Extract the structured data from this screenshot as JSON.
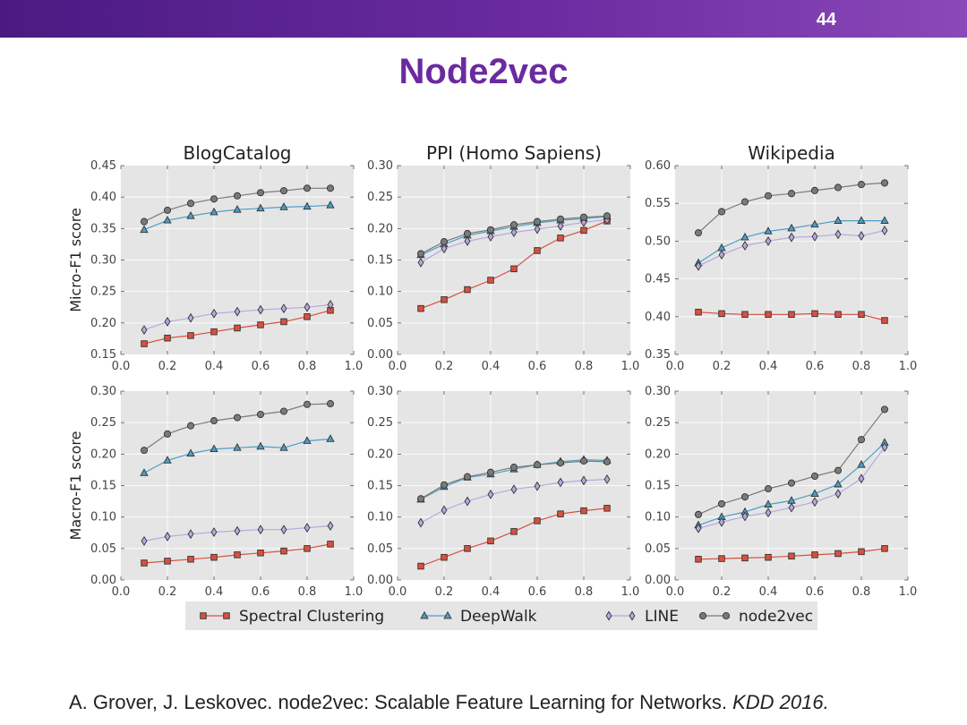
{
  "slide": {
    "number": "44",
    "title": "Node2vec",
    "citation": "A. Grover, J. Leskovec. node2vec: Scalable Feature Learning for Networks.",
    "citation_venue": "KDD 2016."
  },
  "colors": {
    "topbar": "#5a2290",
    "title": "#6b2aa0",
    "plot_bg": "#e5e5e5",
    "grid": "#ffffff",
    "spectral": "#d9503f",
    "deepwalk": "#4d9ec4",
    "line": "#b8a8e0",
    "node2vec": "#7a7a7a"
  },
  "legend": [
    {
      "name": "Spectral Clustering",
      "marker": "square",
      "key": "spectral"
    },
    {
      "name": "DeepWalk",
      "marker": "triangle",
      "key": "deepwalk"
    },
    {
      "name": "LINE",
      "marker": "diamond",
      "key": "line"
    },
    {
      "name": "node2vec",
      "marker": "circle",
      "key": "node2vec"
    }
  ],
  "chart_data": [
    {
      "type": "line",
      "title": "BlogCatalog",
      "ylabel": "Micro-F1 score",
      "xlabel": "",
      "x": [
        0.1,
        0.2,
        0.3,
        0.4,
        0.5,
        0.6,
        0.7,
        0.8,
        0.9
      ],
      "xlim": [
        0.0,
        1.0
      ],
      "ylim": [
        0.15,
        0.45
      ],
      "xticks": [
        "0.0",
        "0.2",
        "0.4",
        "0.6",
        "0.8",
        "1.0"
      ],
      "yticks": [
        "0.15",
        "0.20",
        "0.25",
        "0.30",
        "0.35",
        "0.40",
        "0.45"
      ],
      "series": [
        {
          "name": "Spectral Clustering",
          "key": "spectral",
          "values": [
            0.167,
            0.176,
            0.18,
            0.186,
            0.192,
            0.197,
            0.202,
            0.21,
            0.22
          ]
        },
        {
          "name": "DeepWalk",
          "key": "deepwalk",
          "values": [
            0.348,
            0.363,
            0.37,
            0.376,
            0.38,
            0.382,
            0.384,
            0.385,
            0.387
          ]
        },
        {
          "name": "LINE",
          "key": "line",
          "values": [
            0.189,
            0.202,
            0.208,
            0.215,
            0.218,
            0.221,
            0.223,
            0.225,
            0.229
          ]
        },
        {
          "name": "node2vec",
          "key": "node2vec",
          "values": [
            0.361,
            0.379,
            0.39,
            0.397,
            0.402,
            0.407,
            0.41,
            0.414,
            0.414
          ]
        }
      ]
    },
    {
      "type": "line",
      "title": "PPI (Homo Sapiens)",
      "ylabel": "",
      "xlabel": "",
      "x": [
        0.1,
        0.2,
        0.3,
        0.4,
        0.5,
        0.6,
        0.7,
        0.8,
        0.9
      ],
      "xlim": [
        0.0,
        1.0
      ],
      "ylim": [
        0.0,
        0.3
      ],
      "xticks": [
        "0.0",
        "0.2",
        "0.4",
        "0.6",
        "0.8",
        "1.0"
      ],
      "yticks": [
        "0.00",
        "0.05",
        "0.10",
        "0.15",
        "0.20",
        "0.25",
        "0.30"
      ],
      "series": [
        {
          "name": "Spectral Clustering",
          "key": "spectral",
          "values": [
            0.073,
            0.087,
            0.103,
            0.118,
            0.136,
            0.165,
            0.185,
            0.197,
            0.212
          ]
        },
        {
          "name": "DeepWalk",
          "key": "deepwalk",
          "values": [
            0.158,
            0.175,
            0.189,
            0.196,
            0.203,
            0.209,
            0.213,
            0.216,
            0.219
          ]
        },
        {
          "name": "LINE",
          "key": "line",
          "values": [
            0.146,
            0.168,
            0.18,
            0.187,
            0.194,
            0.199,
            0.204,
            0.21,
            0.214
          ]
        },
        {
          "name": "node2vec",
          "key": "node2vec",
          "values": [
            0.16,
            0.179,
            0.192,
            0.198,
            0.206,
            0.211,
            0.215,
            0.218,
            0.22
          ]
        }
      ]
    },
    {
      "type": "line",
      "title": "Wikipedia",
      "ylabel": "",
      "xlabel": "",
      "x": [
        0.1,
        0.2,
        0.3,
        0.4,
        0.5,
        0.6,
        0.7,
        0.8,
        0.9
      ],
      "xlim": [
        0.0,
        1.0
      ],
      "ylim": [
        0.35,
        0.6
      ],
      "xticks": [
        "0.0",
        "0.2",
        "0.4",
        "0.6",
        "0.8",
        "1.0"
      ],
      "yticks": [
        "0.35",
        "0.40",
        "0.45",
        "0.50",
        "0.55",
        "0.60"
      ],
      "series": [
        {
          "name": "Spectral Clustering",
          "key": "spectral",
          "values": [
            0.406,
            0.404,
            0.403,
            0.403,
            0.403,
            0.404,
            0.403,
            0.403,
            0.395
          ]
        },
        {
          "name": "DeepWalk",
          "key": "deepwalk",
          "values": [
            0.471,
            0.491,
            0.505,
            0.513,
            0.517,
            0.522,
            0.527,
            0.527,
            0.527
          ]
        },
        {
          "name": "LINE",
          "key": "line",
          "values": [
            0.467,
            0.482,
            0.494,
            0.5,
            0.505,
            0.506,
            0.509,
            0.507,
            0.514
          ]
        },
        {
          "name": "node2vec",
          "key": "node2vec",
          "values": [
            0.511,
            0.539,
            0.552,
            0.56,
            0.563,
            0.567,
            0.571,
            0.575,
            0.577
          ]
        }
      ]
    },
    {
      "type": "line",
      "title": "",
      "ylabel": "Macro-F1 score",
      "xlabel": "",
      "x": [
        0.1,
        0.2,
        0.3,
        0.4,
        0.5,
        0.6,
        0.7,
        0.8,
        0.9
      ],
      "xlim": [
        0.0,
        1.0
      ],
      "ylim": [
        0.0,
        0.3
      ],
      "xticks": [
        "0.0",
        "0.2",
        "0.4",
        "0.6",
        "0.8",
        "1.0"
      ],
      "yticks": [
        "0.00",
        "0.05",
        "0.10",
        "0.15",
        "0.20",
        "0.25",
        "0.30"
      ],
      "series": [
        {
          "name": "Spectral Clustering",
          "key": "spectral",
          "values": [
            0.027,
            0.03,
            0.033,
            0.036,
            0.04,
            0.043,
            0.046,
            0.05,
            0.057
          ]
        },
        {
          "name": "DeepWalk",
          "key": "deepwalk",
          "values": [
            0.17,
            0.19,
            0.201,
            0.208,
            0.21,
            0.212,
            0.21,
            0.221,
            0.224
          ]
        },
        {
          "name": "LINE",
          "key": "line",
          "values": [
            0.062,
            0.069,
            0.073,
            0.076,
            0.078,
            0.08,
            0.08,
            0.083,
            0.086
          ]
        },
        {
          "name": "node2vec",
          "key": "node2vec",
          "values": [
            0.206,
            0.232,
            0.245,
            0.253,
            0.258,
            0.263,
            0.268,
            0.279,
            0.28
          ]
        }
      ]
    },
    {
      "type": "line",
      "title": "",
      "ylabel": "",
      "xlabel": "",
      "x": [
        0.1,
        0.2,
        0.3,
        0.4,
        0.5,
        0.6,
        0.7,
        0.8,
        0.9
      ],
      "xlim": [
        0.0,
        1.0
      ],
      "ylim": [
        0.0,
        0.3
      ],
      "xticks": [
        "0.0",
        "0.2",
        "0.4",
        "0.6",
        "0.8",
        "1.0"
      ],
      "yticks": [
        "0.00",
        "0.05",
        "0.10",
        "0.15",
        "0.20",
        "0.25",
        "0.30"
      ],
      "series": [
        {
          "name": "Spectral Clustering",
          "key": "spectral",
          "values": [
            0.022,
            0.036,
            0.05,
            0.062,
            0.077,
            0.094,
            0.105,
            0.11,
            0.114
          ]
        },
        {
          "name": "DeepWalk",
          "key": "deepwalk",
          "values": [
            0.128,
            0.148,
            0.163,
            0.168,
            0.176,
            0.183,
            0.188,
            0.191,
            0.19
          ]
        },
        {
          "name": "LINE",
          "key": "line",
          "values": [
            0.091,
            0.111,
            0.125,
            0.136,
            0.144,
            0.149,
            0.155,
            0.158,
            0.16
          ]
        },
        {
          "name": "node2vec",
          "key": "node2vec",
          "values": [
            0.129,
            0.151,
            0.164,
            0.171,
            0.179,
            0.183,
            0.186,
            0.189,
            0.188
          ]
        }
      ]
    },
    {
      "type": "line",
      "title": "",
      "ylabel": "",
      "xlabel": "",
      "x": [
        0.1,
        0.2,
        0.3,
        0.4,
        0.5,
        0.6,
        0.7,
        0.8,
        0.9
      ],
      "xlim": [
        0.0,
        1.0
      ],
      "ylim": [
        0.0,
        0.3
      ],
      "xticks": [
        "0.0",
        "0.2",
        "0.4",
        "0.6",
        "0.8",
        "1.0"
      ],
      "yticks": [
        "0.00",
        "0.05",
        "0.10",
        "0.15",
        "0.20",
        "0.25",
        "0.30"
      ],
      "series": [
        {
          "name": "Spectral Clustering",
          "key": "spectral",
          "values": [
            0.033,
            0.034,
            0.035,
            0.036,
            0.038,
            0.04,
            0.042,
            0.045,
            0.05
          ]
        },
        {
          "name": "DeepWalk",
          "key": "deepwalk",
          "values": [
            0.087,
            0.1,
            0.108,
            0.12,
            0.126,
            0.137,
            0.152,
            0.183,
            0.218
          ]
        },
        {
          "name": "LINE",
          "key": "line",
          "values": [
            0.082,
            0.092,
            0.101,
            0.107,
            0.115,
            0.124,
            0.137,
            0.161,
            0.211
          ]
        },
        {
          "name": "node2vec",
          "key": "node2vec",
          "values": [
            0.104,
            0.121,
            0.132,
            0.145,
            0.154,
            0.165,
            0.174,
            0.223,
            0.271
          ]
        }
      ]
    }
  ]
}
